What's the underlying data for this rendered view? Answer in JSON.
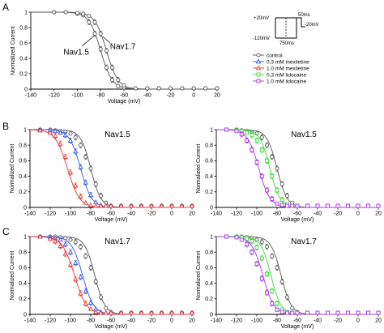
{
  "panel_labels": [
    "A",
    "B",
    "C"
  ],
  "protocol": {
    "v_hold": "-120mV",
    "v_test": "+20mV",
    "v_step": "-20mV",
    "t_pre": "750ms",
    "t_test": "50ms"
  },
  "legend": [
    {
      "label": "control",
      "color": "#555555",
      "marker": "circle"
    },
    {
      "label": "0.3 mM mexiletine",
      "color": "#3355ee",
      "marker": "triangle"
    },
    {
      "label": "1.0 mM mexiletine",
      "color": "#ee3333",
      "marker": "triangle"
    },
    {
      "label": "0.3 mM lidocaine",
      "color": "#33dd33",
      "marker": "square"
    },
    {
      "label": "1.0 mM lidocaine",
      "color": "#aa33ee",
      "marker": "square"
    }
  ],
  "chart_data": [
    {
      "panel": "A",
      "type": "scatter",
      "title": "",
      "xlabel": "Voltage (mV)",
      "ylabel": "Normalized Current",
      "xlim": [
        -140,
        20
      ],
      "ylim": [
        0,
        1
      ],
      "xticks": [
        -140,
        -120,
        -100,
        -80,
        -60,
        -40,
        -20,
        0,
        20
      ],
      "yticks": [
        0,
        0.2,
        0.4,
        0.6,
        0.8,
        1
      ],
      "annotations": [
        "Nav1.5",
        "Nav1.7"
      ],
      "x": [
        -120,
        -110,
        -100,
        -95,
        -90,
        -85,
        -80,
        -75,
        -70,
        -65,
        -60,
        -50,
        -40,
        -30,
        -20,
        -10,
        0,
        10,
        20
      ],
      "series": [
        {
          "color": "#555555",
          "marker": "circle",
          "v_half": -80,
          "k": 5,
          "values": [
            1.0,
            1.0,
            0.98,
            0.96,
            0.87,
            0.72,
            0.52,
            0.28,
            0.12,
            0.04,
            0.02,
            0.01,
            0.01,
            0.01,
            0.01,
            0.01,
            0.01,
            0.01,
            0.01
          ]
        },
        {
          "color": "#555555",
          "marker": "circle",
          "v_half": -75,
          "k": 5,
          "values": [
            1.0,
            1.0,
            0.99,
            0.98,
            0.95,
            0.87,
            0.72,
            0.5,
            0.28,
            0.12,
            0.05,
            0.01,
            0.01,
            0.01,
            0.01,
            0.01,
            0.01,
            0.01,
            0.01
          ]
        }
      ]
    },
    {
      "panel": "B-left",
      "type": "scatter",
      "title": "Nav1.5",
      "xlabel": "Voltage (mV)",
      "ylabel": "Normalized Current",
      "xlim": [
        -140,
        20
      ],
      "ylim": [
        0,
        1
      ],
      "xticks": [
        -140,
        -120,
        -100,
        -80,
        -60,
        -40,
        -20,
        0,
        20
      ],
      "yticks": [
        0,
        0.2,
        0.4,
        0.6,
        0.8,
        1
      ],
      "x": [
        -130,
        -120,
        -115,
        -110,
        -105,
        -100,
        -95,
        -90,
        -85,
        -80,
        -75,
        -70,
        -65,
        -60,
        -50,
        -40,
        -30,
        -20,
        -10,
        0,
        10,
        20
      ],
      "series": [
        {
          "name": "control",
          "color": "#555555",
          "marker": "circle",
          "v_half": -80,
          "k": 5,
          "values": [
            1.0,
            1.0,
            0.99,
            0.98,
            0.97,
            0.95,
            0.9,
            0.8,
            0.65,
            0.5,
            0.3,
            0.15,
            0.06,
            0.02,
            0.02,
            0.02,
            0.02,
            0.02,
            0.02,
            0.02,
            0.02,
            0.02
          ]
        },
        {
          "name": "0.3 mM mexiletine",
          "color": "#3355ee",
          "marker": "triangle",
          "v_half": -90,
          "k": 5.5,
          "values": [
            1.0,
            0.99,
            0.98,
            0.96,
            0.93,
            0.86,
            0.72,
            0.52,
            0.32,
            0.16,
            0.07,
            0.03,
            0.02,
            0.02,
            0.02,
            0.02,
            0.02,
            0.02,
            0.02,
            0.02,
            0.02,
            0.02
          ]
        },
        {
          "name": "1.0 mM mexiletine",
          "color": "#ee3333",
          "marker": "triangle",
          "v_half": -103,
          "k": 6,
          "values": [
            0.99,
            0.96,
            0.92,
            0.82,
            0.65,
            0.45,
            0.28,
            0.14,
            0.06,
            0.03,
            0.02,
            0.02,
            0.02,
            0.02,
            0.02,
            0.02,
            0.02,
            0.02,
            0.02,
            0.02,
            0.02,
            0.02
          ]
        }
      ]
    },
    {
      "panel": "B-right",
      "type": "scatter",
      "title": "Nav1.5",
      "xlabel": "Voltage (mV)",
      "ylabel": "Normalized Current",
      "xlim": [
        -140,
        20
      ],
      "ylim": [
        0,
        1
      ],
      "xticks": [
        -140,
        -120,
        -100,
        -80,
        -60,
        -40,
        -20,
        0,
        20
      ],
      "yticks": [
        0,
        0.2,
        0.4,
        0.6,
        0.8,
        1
      ],
      "x": [
        -130,
        -120,
        -115,
        -110,
        -105,
        -100,
        -95,
        -90,
        -85,
        -80,
        -75,
        -70,
        -65,
        -60,
        -50,
        -40,
        -30,
        -20,
        -10,
        0,
        10,
        20
      ],
      "series": [
        {
          "name": "control",
          "color": "#555555",
          "marker": "circle",
          "v_half": -80,
          "k": 5,
          "values": [
            1.0,
            1.0,
            0.99,
            0.98,
            0.97,
            0.95,
            0.9,
            0.8,
            0.65,
            0.5,
            0.3,
            0.15,
            0.06,
            0.02,
            0.02,
            0.02,
            0.02,
            0.02,
            0.02,
            0.02,
            0.02,
            0.02
          ]
        },
        {
          "name": "0.3 mM lidocaine",
          "color": "#33dd33",
          "marker": "square",
          "v_half": -87,
          "k": 5,
          "values": [
            1.0,
            0.99,
            0.98,
            0.96,
            0.93,
            0.86,
            0.74,
            0.6,
            0.4,
            0.22,
            0.1,
            0.04,
            0.02,
            0.02,
            0.02,
            0.02,
            0.02,
            0.02,
            0.02,
            0.02,
            0.02,
            0.02
          ]
        },
        {
          "name": "1.0 mM lidocaine",
          "color": "#aa33ee",
          "marker": "square",
          "v_half": -98,
          "k": 5.5,
          "values": [
            1.0,
            0.98,
            0.94,
            0.86,
            0.74,
            0.58,
            0.4,
            0.22,
            0.11,
            0.05,
            0.03,
            0.02,
            0.02,
            0.02,
            0.02,
            0.02,
            0.02,
            0.02,
            0.02,
            0.02,
            0.02,
            0.02
          ]
        }
      ]
    },
    {
      "panel": "C-left",
      "type": "scatter",
      "title": "Nav1.7",
      "xlabel": "Voltage (mV)",
      "ylabel": "Normalized Current",
      "xlim": [
        -140,
        20
      ],
      "ylim": [
        0,
        1
      ],
      "xticks": [
        -140,
        -120,
        -100,
        -80,
        -60,
        -40,
        -20,
        0,
        20
      ],
      "yticks": [
        0,
        0.2,
        0.4,
        0.6,
        0.8,
        1
      ],
      "x": [
        -130,
        -120,
        -115,
        -110,
        -105,
        -100,
        -95,
        -90,
        -85,
        -80,
        -75,
        -70,
        -65,
        -60,
        -50,
        -40,
        -30,
        -20,
        -10,
        0,
        10,
        20
      ],
      "series": [
        {
          "name": "control",
          "color": "#555555",
          "marker": "circle",
          "v_half": -76,
          "k": 5,
          "values": [
            1.0,
            1.0,
            1.0,
            0.99,
            0.98,
            0.96,
            0.93,
            0.87,
            0.75,
            0.6,
            0.42,
            0.22,
            0.08,
            0.03,
            0.02,
            0.02,
            0.02,
            0.02,
            0.02,
            0.02,
            0.02,
            0.02
          ]
        },
        {
          "name": "0.3 mM mexiletine",
          "color": "#3355ee",
          "marker": "triangle",
          "v_half": -88,
          "k": 5.5,
          "values": [
            1.0,
            0.99,
            0.98,
            0.96,
            0.9,
            0.8,
            0.66,
            0.48,
            0.3,
            0.15,
            0.07,
            0.03,
            0.02,
            0.02,
            0.02,
            0.02,
            0.02,
            0.02,
            0.02,
            0.02,
            0.02,
            0.02
          ]
        },
        {
          "name": "1.0 mM mexiletine",
          "color": "#ee3333",
          "marker": "triangle",
          "v_half": -96,
          "k": 6,
          "values": [
            1.0,
            0.97,
            0.94,
            0.88,
            0.78,
            0.64,
            0.45,
            0.27,
            0.14,
            0.07,
            0.03,
            0.02,
            0.02,
            0.02,
            0.02,
            0.02,
            0.02,
            0.02,
            0.02,
            0.02,
            0.02,
            0.02
          ]
        }
      ]
    },
    {
      "panel": "C-right",
      "type": "scatter",
      "title": "Nav1.7",
      "xlabel": "Voltage (mV)",
      "ylabel": "Normalized Current",
      "xlim": [
        -140,
        20
      ],
      "ylim": [
        0,
        1
      ],
      "xticks": [
        -140,
        -120,
        -100,
        -80,
        -60,
        -40,
        -20,
        0,
        20
      ],
      "yticks": [
        0,
        0.2,
        0.4,
        0.6,
        0.8,
        1
      ],
      "x": [
        -130,
        -120,
        -115,
        -110,
        -105,
        -100,
        -95,
        -90,
        -85,
        -80,
        -75,
        -70,
        -65,
        -60,
        -50,
        -40,
        -30,
        -20,
        -10,
        0,
        10,
        20
      ],
      "series": [
        {
          "name": "control",
          "color": "#555555",
          "marker": "circle",
          "v_half": -76,
          "k": 5,
          "values": [
            1.0,
            1.0,
            1.0,
            0.99,
            0.98,
            0.96,
            0.93,
            0.87,
            0.75,
            0.6,
            0.42,
            0.22,
            0.08,
            0.03,
            0.02,
            0.02,
            0.02,
            0.02,
            0.02,
            0.02,
            0.02,
            0.02
          ]
        },
        {
          "name": "0.3 mM lidocaine",
          "color": "#33dd33",
          "marker": "square",
          "v_half": -86,
          "k": 5,
          "values": [
            1.0,
            1.0,
            0.99,
            0.97,
            0.94,
            0.86,
            0.72,
            0.52,
            0.3,
            0.14,
            0.06,
            0.03,
            0.02,
            0.02,
            0.02,
            0.02,
            0.02,
            0.02,
            0.02,
            0.02,
            0.02,
            0.02
          ]
        },
        {
          "name": "1.0 mM lidocaine",
          "color": "#aa33ee",
          "marker": "square",
          "v_half": -94,
          "k": 5.5,
          "values": [
            1.0,
            0.99,
            0.96,
            0.9,
            0.8,
            0.65,
            0.46,
            0.28,
            0.14,
            0.06,
            0.03,
            0.02,
            0.02,
            0.02,
            0.02,
            0.02,
            0.02,
            0.02,
            0.02,
            0.02,
            0.02,
            0.02
          ]
        }
      ]
    }
  ]
}
